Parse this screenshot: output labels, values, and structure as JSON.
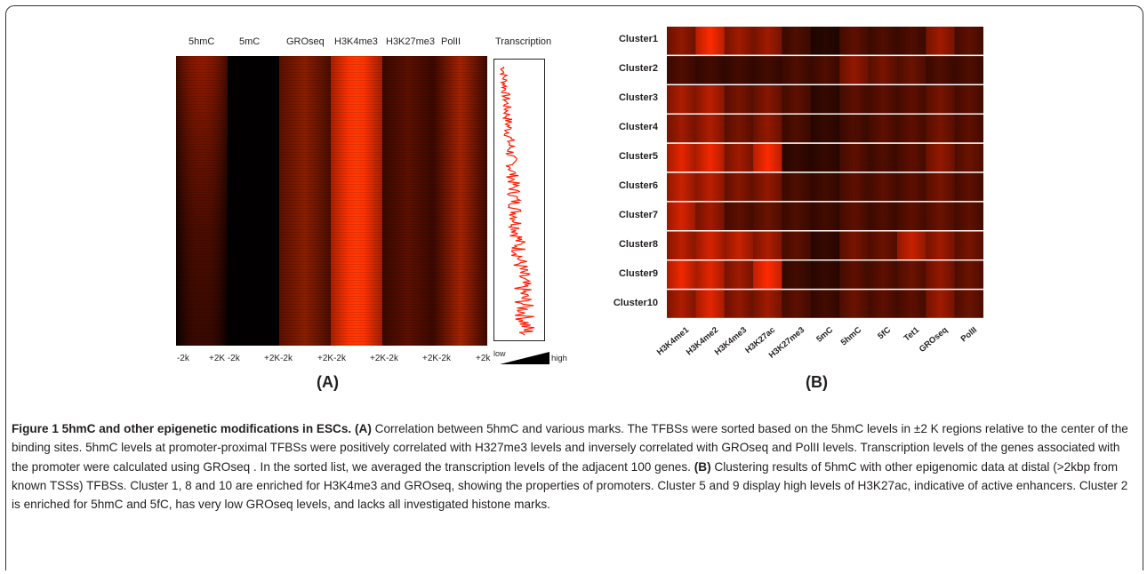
{
  "panel_a": {
    "columns": [
      "5hmC",
      "5mC",
      "GROseq",
      "H3K4me3",
      "H3K27me3",
      "PolII"
    ],
    "transcription_label": "Transcription",
    "axis_labels": [
      "-2k",
      "+2K -2k",
      "+2K-2k",
      "+2K-2k",
      "+2K-2k",
      "+2K-2k",
      "+2k"
    ],
    "legend_low": "low",
    "legend_high": "high",
    "letter": "(A)"
  },
  "panel_b": {
    "clusters": [
      "Cluster1",
      "Cluster2",
      "Cluster3",
      "Cluster4",
      "Cluster5",
      "Cluster6",
      "Cluster7",
      "Cluster8",
      "Cluster9",
      "Cluster10"
    ],
    "columns": [
      "H3K4me1",
      "H3K4me2",
      "H3K4me3",
      "H3K27ac",
      "H3K27me3",
      "5mC",
      "5hmC",
      "5fC",
      "Tet1",
      "GROseq",
      "PolII"
    ],
    "letter": "(B)"
  },
  "colors": {
    "heat_low": "#000000",
    "heat_high": "#ff2a00",
    "line": "#ff1a00"
  },
  "chart_data": {
    "type": "heatmap",
    "rows": [
      "Cluster1",
      "Cluster2",
      "Cluster3",
      "Cluster4",
      "Cluster5",
      "Cluster6",
      "Cluster7",
      "Cluster8",
      "Cluster9",
      "Cluster10"
    ],
    "columns": [
      "H3K4me1",
      "H3K4me2",
      "H3K4me3",
      "H3K27ac",
      "H3K27me3",
      "5mC",
      "5hmC",
      "5fC",
      "Tet1",
      "GROseq",
      "PolII"
    ],
    "intensity": [
      [
        0.55,
        0.95,
        0.6,
        0.6,
        0.3,
        0.15,
        0.35,
        0.3,
        0.3,
        0.6,
        0.35
      ],
      [
        0.3,
        0.25,
        0.25,
        0.25,
        0.3,
        0.3,
        0.55,
        0.45,
        0.4,
        0.3,
        0.3
      ],
      [
        0.65,
        0.7,
        0.45,
        0.5,
        0.35,
        0.2,
        0.35,
        0.35,
        0.35,
        0.45,
        0.35
      ],
      [
        0.6,
        0.65,
        0.45,
        0.55,
        0.3,
        0.2,
        0.3,
        0.35,
        0.35,
        0.45,
        0.35
      ],
      [
        0.85,
        0.9,
        0.6,
        0.95,
        0.2,
        0.2,
        0.35,
        0.3,
        0.35,
        0.55,
        0.4
      ],
      [
        0.75,
        0.7,
        0.5,
        0.55,
        0.3,
        0.25,
        0.35,
        0.35,
        0.35,
        0.45,
        0.35
      ],
      [
        0.8,
        0.6,
        0.35,
        0.4,
        0.3,
        0.25,
        0.35,
        0.3,
        0.35,
        0.4,
        0.35
      ],
      [
        0.7,
        0.8,
        0.75,
        0.65,
        0.35,
        0.2,
        0.45,
        0.4,
        0.75,
        0.6,
        0.45
      ],
      [
        0.9,
        0.85,
        0.6,
        1.0,
        0.25,
        0.2,
        0.35,
        0.35,
        0.4,
        0.55,
        0.4
      ],
      [
        0.65,
        0.85,
        0.55,
        0.6,
        0.35,
        0.25,
        0.4,
        0.35,
        0.35,
        0.6,
        0.4
      ]
    ]
  },
  "caption": {
    "fig_title": "Figure 1 5hmC and other epigenetic modifications in ESCs.",
    "a_label": "(A)",
    "a_text": " Correlation between 5hmC and various marks. The TFBSs were sorted based on the 5hmC levels in ±2 K regions relative to the center of the binding sites. 5hmC levels at promoter-proximal TFBSs were positively correlated with H327me3 levels and inversely correlated with GROseq and PolII levels. Transcription levels of the genes associated with the promoter were calculated using GROseq . In the sorted list, we averaged the transcription levels of the adjacent 100 genes. ",
    "b_label": "(B)",
    "b_text": " Clustering results of 5hmC with other epigenomic data at distal (>2kbp from known TSSs) TFBSs. Cluster 1, 8 and 10 are enriched for H3K4me3 and GROseq, showing the properties of promoters. Cluster 5 and 9 display high levels of H3K27ac, indicative of active enhancers. Cluster 2 is enriched for 5hmC and 5fC, has very low GROseq levels, and lacks all investigated histone marks."
  }
}
